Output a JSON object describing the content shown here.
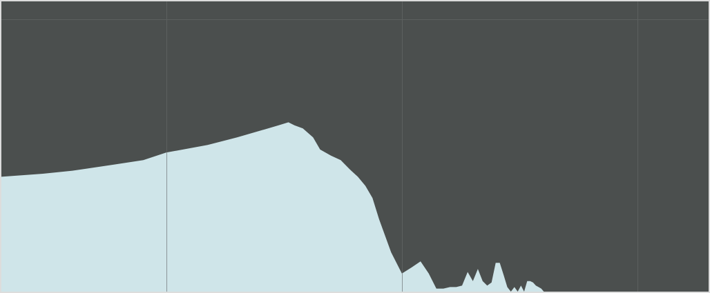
{
  "colors": {
    "background": "#4b4f4e",
    "fill": "#cfe5e9",
    "gridline": "#5c605f",
    "gridline_over_fill": "#8a9598",
    "frame": "#dcdcdc"
  },
  "chart_data": {
    "type": "area",
    "title": "",
    "xlabel": "",
    "ylabel": "",
    "x_scale": "log",
    "xlim": [
      20,
      20000
    ],
    "ylim": [
      -90,
      6
    ],
    "grid": {
      "vertical_x": [
        100,
        1000,
        10000
      ],
      "horizontal_y": [
        0
      ]
    },
    "series": [
      {
        "x": [
          20,
          30,
          40,
          60,
          80,
          100,
          150,
          200,
          300,
          330,
          350,
          380,
          420,
          450,
          500,
          550,
          600,
          650,
          700,
          750,
          800,
          900,
          1000,
          1100,
          1200,
          1300,
          1400,
          1500,
          1600,
          1700,
          1800,
          1900,
          2000,
          2100,
          2200,
          2300,
          2400,
          2500,
          2600,
          2700,
          2800,
          2900,
          3000,
          3100,
          3200,
          3300,
          3400,
          3500,
          3600,
          3700,
          3800,
          3900,
          4000,
          4200,
          4400,
          4600,
          4800,
          5000,
          5300,
          5600,
          6000,
          6500,
          7000,
          8000,
          9000,
          10000,
          12000,
          14000,
          16000,
          18000,
          20000
        ],
        "y": [
          -52,
          -51,
          -50,
          -48,
          -46.5,
          -44,
          -41.5,
          -39,
          -35,
          -34,
          -35,
          -36,
          -39,
          -43,
          -45,
          -46.5,
          -49.5,
          -52,
          -55,
          -59,
          -66,
          -77,
          -84,
          -82,
          -80,
          -84,
          -89,
          -89,
          -88.5,
          -88.5,
          -88,
          -83.5,
          -86.5,
          -82.5,
          -86.5,
          -88,
          -87,
          -80.5,
          -80.5,
          -84.5,
          -88.5,
          -91.5,
          -88.5,
          -91.5,
          -88,
          -90,
          -86.5,
          -86.5,
          -87,
          -88,
          -88.5,
          -89,
          -90,
          -90,
          -90,
          -90,
          -90,
          -90,
          -90,
          -90,
          -90,
          -90,
          -90,
          -90,
          -90,
          -90,
          -90,
          -90,
          -90,
          -90,
          -90
        ]
      }
    ]
  }
}
